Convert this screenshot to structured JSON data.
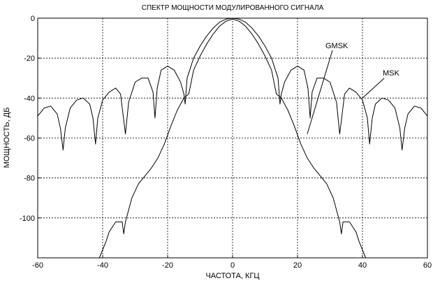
{
  "chart_data": {
    "type": "line",
    "title": "СПЕКТР МОЩНОСТИ МОДУЛИРОВАННОГО СИГНАЛА",
    "xlabel": "ЧАСТОТА, КГЦ",
    "ylabel": "МОЩНОСТЬ, ДБ",
    "xlim": [
      -60,
      60
    ],
    "ylim": [
      -120,
      0
    ],
    "xticks": [
      -60,
      -40,
      -20,
      0,
      20,
      40,
      60
    ],
    "yticks": [
      0,
      -20,
      -40,
      -60,
      -80,
      -100
    ],
    "grid": true,
    "annotations": [
      {
        "text": "GMSK",
        "target_x": 23,
        "target_y": -58
      },
      {
        "text": "MSK",
        "target_x": 40,
        "target_y": -40
      }
    ],
    "series": [
      {
        "name": "MSK",
        "color": "#000000",
        "x": [
          -60,
          -58,
          -56,
          -54,
          -53,
          -52.2,
          -51.5,
          -50,
          -48,
          -46,
          -44,
          -43,
          -42.2,
          -41.5,
          -40,
          -38,
          -36,
          -34.5,
          -33.6,
          -33,
          -32,
          -30,
          -28,
          -26,
          -24.5,
          -23.9,
          -23.2,
          -22,
          -20,
          -18,
          -16,
          -15,
          -14.6,
          -14,
          -12,
          -10,
          -8,
          -6,
          -4,
          -2,
          0,
          2,
          4,
          6,
          8,
          10,
          12,
          14,
          14.6,
          15,
          16,
          18,
          20,
          22,
          23.2,
          23.9,
          24.5,
          26,
          28,
          30,
          32,
          33,
          33.6,
          34.5,
          36,
          38,
          40,
          41.5,
          42.2,
          43,
          44,
          46,
          48,
          50,
          51.5,
          52.2,
          53,
          54,
          56,
          58,
          60
        ],
        "y": [
          -49,
          -45,
          -44,
          -48,
          -55,
          -66,
          -55,
          -45,
          -41,
          -40,
          -43,
          -50,
          -63,
          -50,
          -41,
          -37,
          -35,
          -38,
          -50,
          -58,
          -42,
          -32,
          -30,
          -30,
          -37,
          -50,
          -35,
          -26,
          -24,
          -26,
          -32,
          -38,
          -43,
          -30,
          -20,
          -14,
          -9,
          -5,
          -2,
          -0.5,
          0,
          -0.5,
          -2,
          -5,
          -9,
          -14,
          -20,
          -30,
          -43,
          -38,
          -32,
          -26,
          -24,
          -26,
          -35,
          -50,
          -37,
          -30,
          -30,
          -32,
          -42,
          -58,
          -50,
          -38,
          -35,
          -37,
          -41,
          -50,
          -63,
          -50,
          -43,
          -40,
          -41,
          -45,
          -55,
          -66,
          -55,
          -48,
          -44,
          -45,
          -49
        ]
      },
      {
        "name": "GMSK",
        "color": "#000000",
        "x": [
          -41,
          -39,
          -38,
          -36,
          -34,
          -33.5,
          -33,
          -31,
          -29,
          -27,
          -25,
          -23,
          -21,
          -19,
          -17,
          -15,
          -13.5,
          -13,
          -12,
          -10,
          -8,
          -6,
          -4,
          -2,
          0,
          2,
          4,
          6,
          8,
          10,
          12,
          13,
          13.5,
          15,
          17,
          19,
          21,
          23,
          25,
          27,
          29,
          31,
          33,
          33.5,
          34,
          36,
          38,
          39,
          41
        ],
        "y": [
          -120,
          -112,
          -107,
          -102,
          -102,
          -108,
          -102,
          -90,
          -83,
          -79,
          -75,
          -70,
          -63,
          -54,
          -46,
          -40,
          -38,
          -34,
          -26,
          -19,
          -13,
          -8,
          -4,
          -1.5,
          -0.5,
          -1.5,
          -4,
          -8,
          -13,
          -19,
          -26,
          -34,
          -38,
          -40,
          -46,
          -54,
          -63,
          -70,
          -75,
          -79,
          -83,
          -90,
          -102,
          -108,
          -102,
          -102,
          -107,
          -112,
          -120
        ]
      }
    ]
  }
}
